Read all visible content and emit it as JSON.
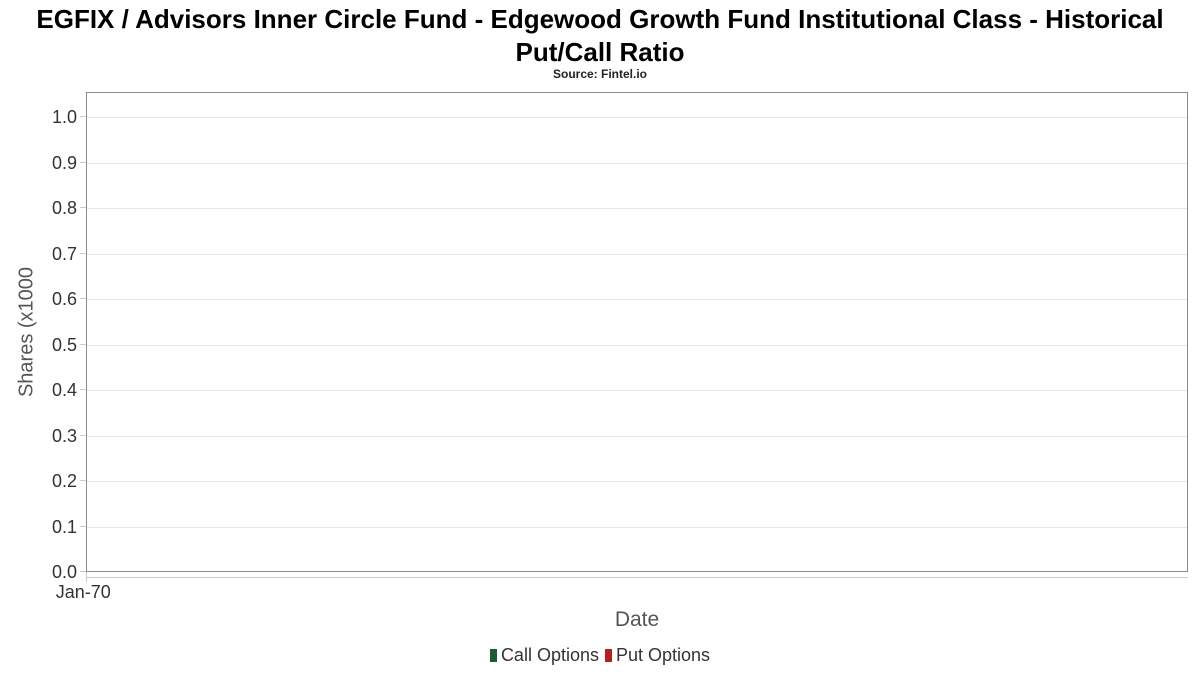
{
  "chart_data": {
    "type": "line",
    "title": "EGFIX / Advisors Inner Circle Fund - Edgewood Growth Fund Institutional Class - Historical Put/Call Ratio",
    "subtitle": "Source: Fintel.io",
    "xlabel": "Date",
    "ylabel": "Shares (x1000",
    "ylim": [
      0,
      1.055
    ],
    "ytick_labels": [
      "0.0",
      "0.1",
      "0.2",
      "0.3",
      "0.4",
      "0.5",
      "0.6",
      "0.7",
      "0.8",
      "0.9",
      "1.0"
    ],
    "xtick_labels": [
      "Jan-70"
    ],
    "grid": true,
    "legend_position": "bottom",
    "series": [
      {
        "name": "Call Options",
        "color": "#1e5b2d",
        "values": []
      },
      {
        "name": "Put Options",
        "color": "#b41f1f",
        "values": []
      }
    ]
  },
  "colors": {
    "plot_border": "#8c8c8c",
    "gridline": "#e6e6e6",
    "axis_line": "#cccccc",
    "tick_label": "#333333",
    "axis_title": "#555555",
    "title_text": "#000000",
    "legend_text": "#333333",
    "background": "#ffffff"
  }
}
